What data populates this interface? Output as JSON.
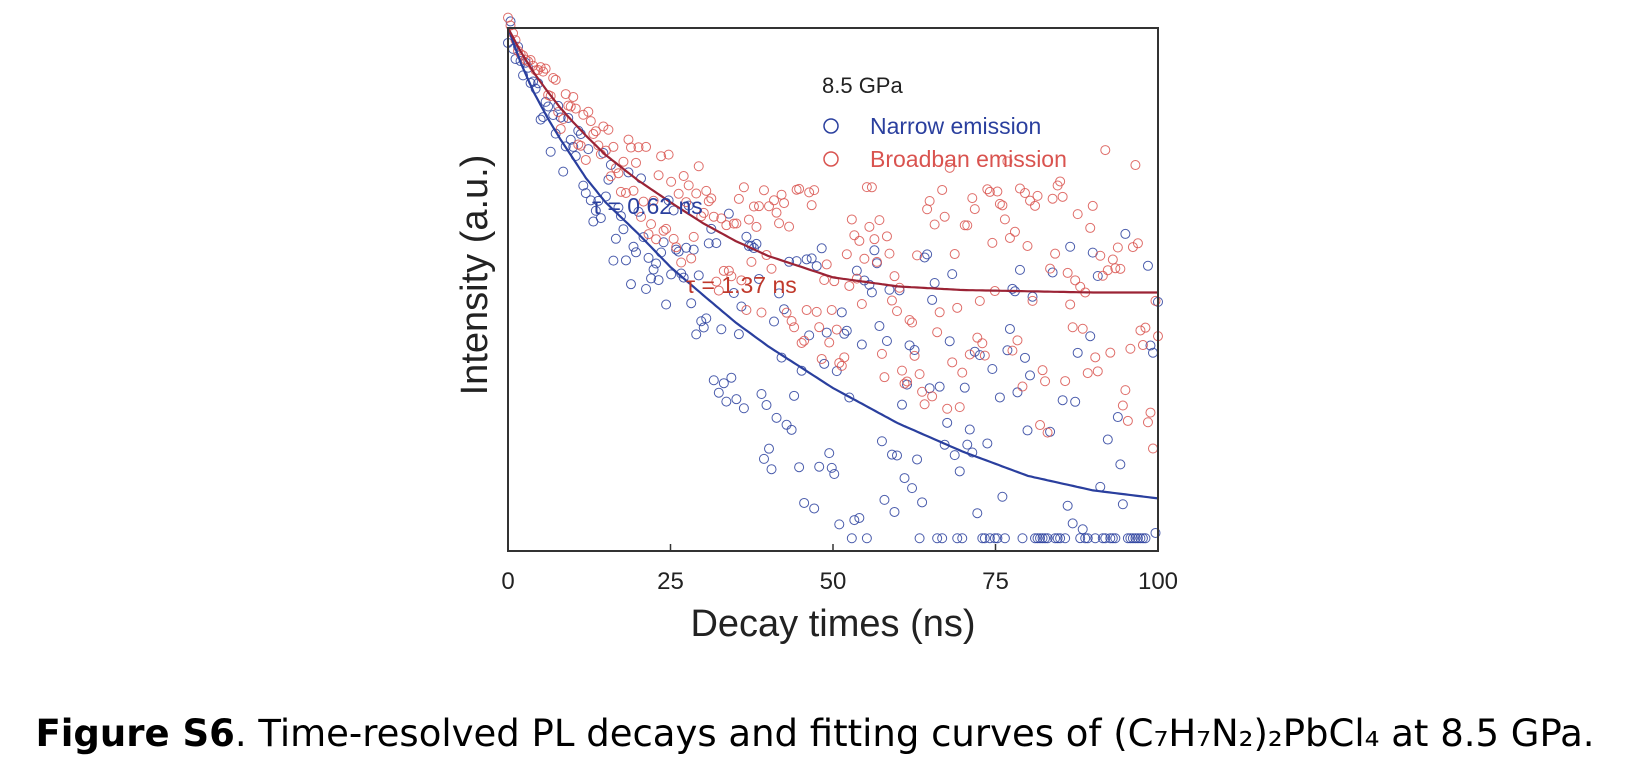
{
  "chart_data": {
    "type": "scatter",
    "xlabel": "Decay times (ns)",
    "ylabel": "Intensity (a.u.)",
    "xlim": [
      0,
      100
    ],
    "x_ticks": [
      "0",
      "25",
      "50",
      "75",
      "100"
    ],
    "y_scale": "log",
    "y_tick_labels": false,
    "grid": false,
    "legend": {
      "title": "8.5 GPa",
      "position": "top-right",
      "entries": [
        {
          "label": "Narrow emission",
          "marker": "open-circle",
          "color": "#2a3f9e"
        },
        {
          "label": "Broadban emission",
          "marker": "open-circle",
          "color": "#d9534f"
        }
      ]
    },
    "annotations": [
      {
        "text": "τ = 0.62 ns",
        "color": "#2a3f9e",
        "series": "Narrow emission"
      },
      {
        "text": "τ = 1.37 ns",
        "color": "#c0392b",
        "series": "Broadban emission"
      }
    ],
    "series": [
      {
        "name": "Narrow emission",
        "color": "#2a3f9e",
        "fit_color": "#2a3f9e",
        "x": [
          0,
          2,
          4,
          6,
          8,
          10,
          12,
          15,
          20,
          25,
          30,
          35,
          40,
          50,
          60,
          70,
          80,
          90,
          100
        ],
        "y": [
          1.0,
          0.72,
          0.55,
          0.44,
          0.36,
          0.3,
          0.25,
          0.2,
          0.15,
          0.11,
          0.085,
          0.066,
          0.053,
          0.036,
          0.026,
          0.02,
          0.016,
          0.014,
          0.013
        ]
      },
      {
        "name": "Broadban emission",
        "color": "#d9534f",
        "fit_color": "#9b2335",
        "x": [
          0,
          2,
          4,
          6,
          8,
          10,
          12,
          15,
          20,
          25,
          30,
          35,
          40,
          50,
          60,
          70,
          80,
          90,
          100
        ],
        "y": [
          1.0,
          0.8,
          0.66,
          0.56,
          0.48,
          0.42,
          0.37,
          0.31,
          0.245,
          0.2,
          0.165,
          0.14,
          0.122,
          0.1,
          0.092,
          0.089,
          0.088,
          0.087,
          0.087
        ]
      }
    ]
  },
  "caption": {
    "label": "Figure S6",
    "text": ". Time-resolved PL decays and fitting curves of (C₇H₇N₂)₂PbCl₄ at 8.5 GPa."
  }
}
